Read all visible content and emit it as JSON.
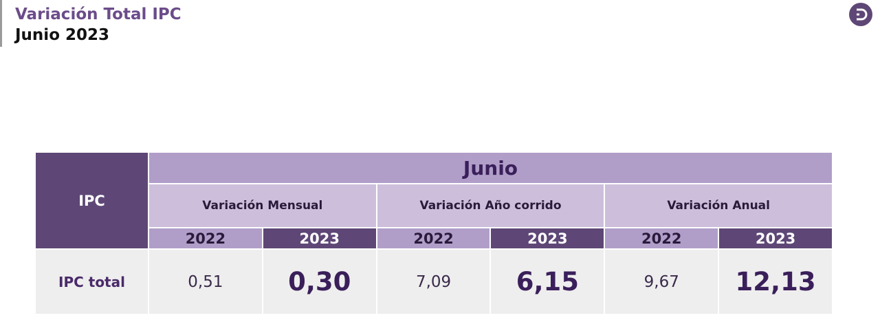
{
  "header": {
    "title": "Variación Total IPC",
    "subtitle": "Junio 2023"
  },
  "table": {
    "corner": "IPC",
    "period": "Junio",
    "groups": [
      "Variación Mensual",
      "Variación Año corrido",
      "Variación Anual"
    ],
    "years": [
      "2022",
      "2023",
      "2022",
      "2023",
      "2022",
      "2023"
    ],
    "row_label": "IPC total",
    "values": [
      "0,51",
      "0,30",
      "7,09",
      "6,15",
      "9,67",
      "12,13"
    ]
  }
}
